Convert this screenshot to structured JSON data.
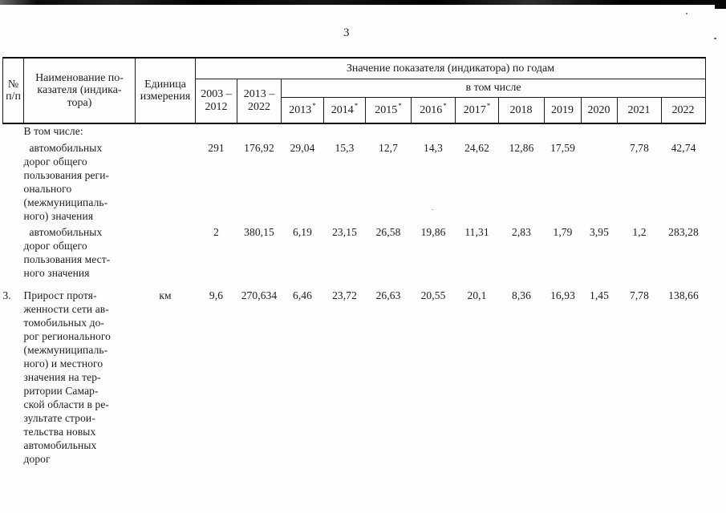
{
  "page": {
    "number": "3"
  },
  "table": {
    "header": {
      "col_num": "№\nп/п",
      "col_name": "Наименование по-\nказателя (индика-\nтора)",
      "col_unit": "Единица\nизмерения",
      "values_group": "Значение показателя (индикатора) по годам",
      "including": "в том числе",
      "col_2003_2012": "2003 –\n2012",
      "col_2013_2022": "2013 –\n2022",
      "years": [
        {
          "label": "2013",
          "star": "*"
        },
        {
          "label": "2014",
          "star": "*"
        },
        {
          "label": "2015",
          "star": "*"
        },
        {
          "label": "2016",
          "star": "*"
        },
        {
          "label": "2017",
          "star": "*"
        },
        {
          "label": "2018",
          "star": ""
        },
        {
          "label": "2019",
          "star": ""
        },
        {
          "label": "2020",
          "star": ""
        },
        {
          "label": "2021",
          "star": ""
        },
        {
          "label": "2022",
          "star": ""
        }
      ]
    },
    "rows": [
      {
        "num": "",
        "name": "В том числе:",
        "unit": "",
        "values": [
          "",
          "",
          "",
          "",
          "",
          "",
          "",
          "",
          "",
          "",
          "",
          ""
        ]
      },
      {
        "num": "",
        "name": "  автомобильных\nдорог общего\nпользования реги-\nонального\n(межмуниципаль-\nного) значения",
        "unit": "",
        "values": [
          "291",
          "176,92",
          "29,04",
          "15,3",
          "12,7",
          "14,3",
          "24,62",
          "12,86",
          "17,59",
          "",
          "7,78",
          "42,74"
        ]
      },
      {
        "num": "",
        "name": "  автомобильных\nдорог общего\nпользования мест-\nного значения",
        "unit": "",
        "values": [
          "2",
          "380,15",
          "6,19",
          "23,15",
          "26,58",
          "19,86",
          "11,31",
          "2,83",
          "1,79",
          "3,95",
          "1,2",
          "283,28"
        ]
      },
      {
        "num": "3.",
        "name": "Прирост протя-\nженности сети ав-\nтомобильных до-\nрог регионального\n(межмуниципаль-\nного) и местного\nзначения на тер-\nритории Самар-\nской области в ре-\nзультате строи-\nтельства новых\nавтомобильных\nдорог",
        "unit": "км",
        "values": [
          "9,6",
          "270,634",
          "6,46",
          "23,72",
          "26,63",
          "20,55",
          "20,1",
          "8,36",
          "16,93",
          "1,45",
          "7,78",
          "138,66"
        ]
      }
    ]
  }
}
